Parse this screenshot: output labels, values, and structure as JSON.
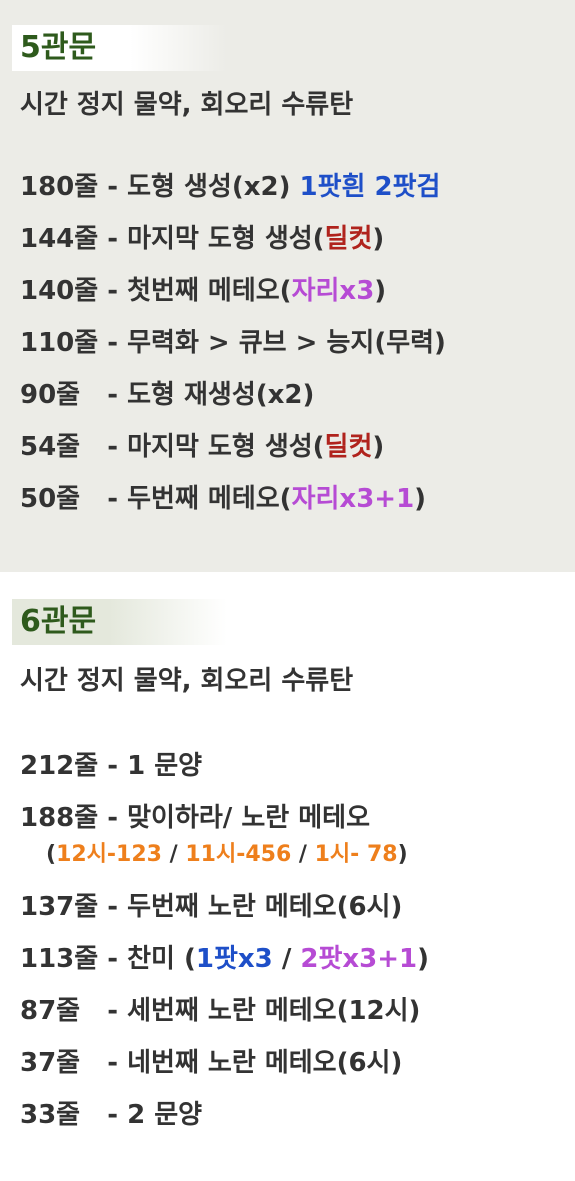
{
  "section5": {
    "heading": "5관문",
    "subtitle": "시간 정지 물약, 회오리 수류탄",
    "lines": [
      {
        "label": "180줄",
        "dash": " - ",
        "text": "도형 생성(x2) ",
        "hl1": "1팟흰 2팟검",
        "tail": ""
      },
      {
        "label": "144줄",
        "dash": " - ",
        "text": "마지막 도형 생성(",
        "hl1": "딜컷",
        "tail": ")"
      },
      {
        "label": "140줄",
        "dash": " - ",
        "text": "첫번째 메테오(",
        "hl1": "자리x3",
        "tail": ")"
      },
      {
        "label": "110줄",
        "dash": " - ",
        "text": "무력화 > 큐브 > 능지(무력)",
        "hl1": "",
        "tail": ""
      },
      {
        "label": "90줄",
        "dash": "   - ",
        "text": "도형 재생성(x2)",
        "hl1": "",
        "tail": ""
      },
      {
        "label": "54줄",
        "dash": "   - ",
        "text": "마지막 도형 생성(",
        "hl1": "딜컷",
        "tail": ")"
      },
      {
        "label": "50줄",
        "dash": "   - ",
        "text": "두번째 메테오(",
        "hl1": "자리x3+1",
        "tail": ")"
      }
    ]
  },
  "section6": {
    "heading": "6관문",
    "subtitle": "시간 정지 물약, 회오리 수류탄",
    "lines": [
      {
        "label": "212줄",
        "dash": " - ",
        "text": "1 문양"
      },
      {
        "label": "188줄",
        "dash": " - ",
        "text": "맞이하라/ 노란 메테오"
      },
      {
        "label": "137줄",
        "dash": " - ",
        "text": "두번째 노란 메테오(6시)"
      },
      {
        "label": "113줄",
        "dash": " - ",
        "text": "찬미 (",
        "hl1": "1팟x3",
        "mid": " / ",
        "hl2": "2팟x3+1",
        "tail": ")"
      },
      {
        "label": "87줄",
        "dash": "   - ",
        "text": "세번째 노란 메테오(12시)"
      },
      {
        "label": "37줄",
        "dash": "   - ",
        "text": "네번째 노란 메테오(6시)"
      },
      {
        "label": "33줄",
        "dash": "   - ",
        "text": "2 문양"
      }
    ],
    "sub_line": {
      "open": "(",
      "a": "12시-123",
      "sep1": " / ",
      "b": "11시-456",
      "sep2": " / ",
      "c": "1시- 78",
      "close": ")"
    }
  },
  "colors": {
    "heading": "#2e5a1c",
    "blue": "#1e4fc8",
    "red": "#b0231d",
    "purple": "#b64bd4",
    "orange": "#ee7f1c",
    "section5_bg": "#ecece7"
  },
  "icons": {
    "corner": "image-search-icon"
  }
}
